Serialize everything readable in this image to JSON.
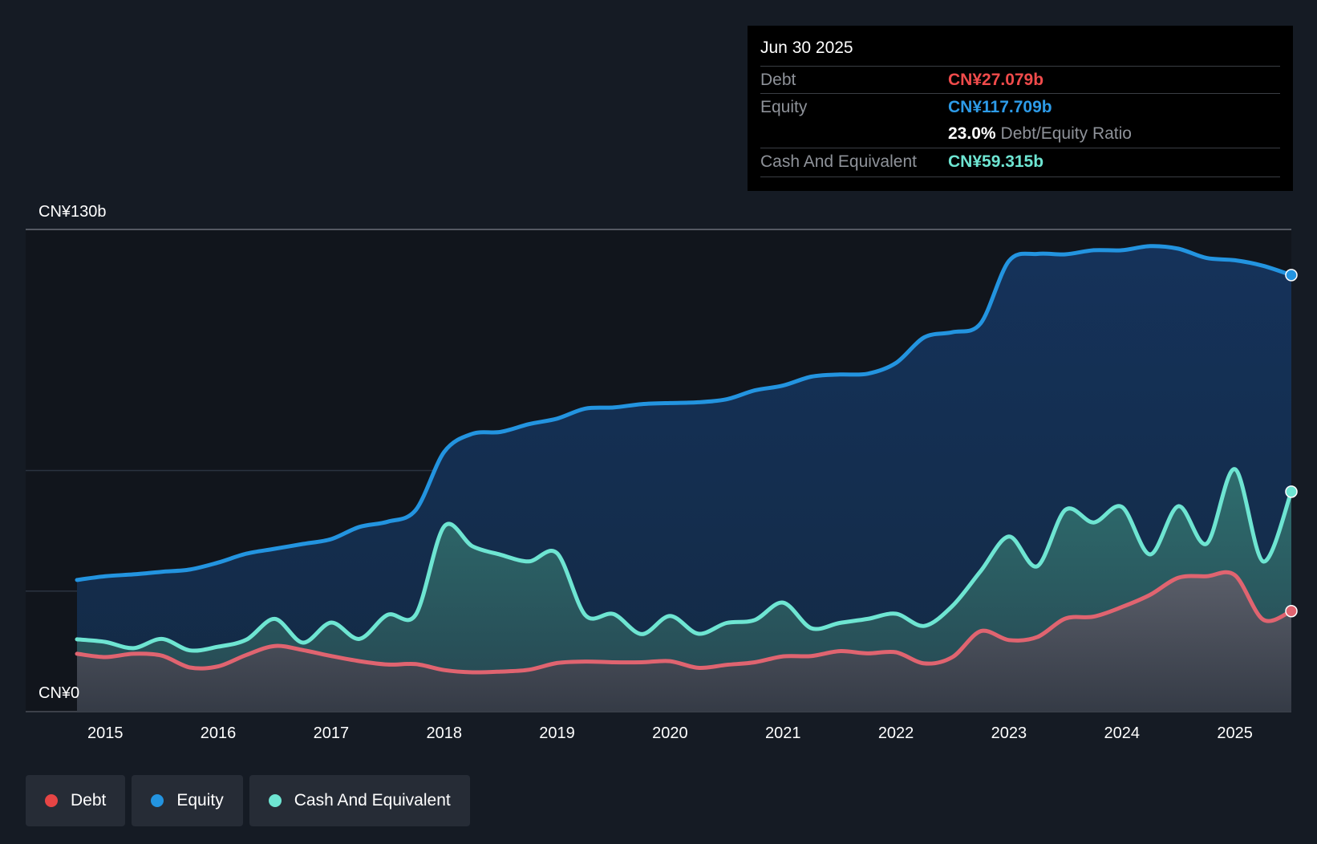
{
  "tooltip": {
    "date": "Jun 30 2025",
    "debt_label": "Debt",
    "debt_value": "CN¥27.079b",
    "equity_label": "Equity",
    "equity_value": "CN¥117.709b",
    "ratio_value": "23.0%",
    "ratio_label": "Debt/Equity Ratio",
    "cash_label": "Cash And Equivalent",
    "cash_value": "CN¥59.315b"
  },
  "legend": [
    {
      "label": "Debt",
      "color": "#e64545"
    },
    {
      "label": "Equity",
      "color": "#2394e0"
    },
    {
      "label": "Cash And Equivalent",
      "color": "#6ee5d2"
    }
  ],
  "colors": {
    "debt": "#e06470",
    "equity": "#2394e0",
    "cash": "#6ee5d2",
    "debt_text": "#f04b4b",
    "equity_text": "#2d9be8",
    "cash_text": "#6ee5d2"
  },
  "chart_data": {
    "type": "area",
    "title": "",
    "xlabel": "",
    "ylabel": "",
    "ylim": [
      0,
      130
    ],
    "y_tick_labels": [
      "CN¥0",
      "CN¥130b"
    ],
    "x_tick_labels": [
      "2015",
      "2016",
      "2017",
      "2018",
      "2019",
      "2020",
      "2021",
      "2022",
      "2023",
      "2024",
      "2025"
    ],
    "xlim": [
      2014.75,
      2025.5
    ],
    "series": [
      {
        "name": "Equity",
        "x": [
          2014.75,
          2015.0,
          2015.25,
          2015.5,
          2015.75,
          2016.0,
          2016.25,
          2016.5,
          2016.75,
          2017.0,
          2017.25,
          2017.5,
          2017.75,
          2018.0,
          2018.25,
          2018.5,
          2018.75,
          2019.0,
          2019.25,
          2019.5,
          2019.75,
          2020.0,
          2020.25,
          2020.5,
          2020.75,
          2021.0,
          2021.25,
          2021.5,
          2021.75,
          2022.0,
          2022.25,
          2022.5,
          2022.75,
          2023.0,
          2023.25,
          2023.5,
          2023.75,
          2024.0,
          2024.25,
          2024.5,
          2024.75,
          2025.0,
          2025.25,
          2025.5
        ],
        "values": [
          35.5,
          36.5,
          37.0,
          37.7,
          38.3,
          40.2,
          42.6,
          43.9,
          45.2,
          46.5,
          49.8,
          51.2,
          54.4,
          70.0,
          74.9,
          75.4,
          77.5,
          79.0,
          81.7,
          82.0,
          82.9,
          83.2,
          83.4,
          84.2,
          86.6,
          87.9,
          90.3,
          90.9,
          91.1,
          94.0,
          100.9,
          102.3,
          104.7,
          121.5,
          123.4,
          123.3,
          124.4,
          124.4,
          125.5,
          124.8,
          122.3,
          121.7,
          120.2,
          117.7
        ]
      },
      {
        "name": "Cash And Equivalent",
        "x": [
          2014.75,
          2015.0,
          2015.25,
          2015.5,
          2015.75,
          2016.0,
          2016.25,
          2016.5,
          2016.75,
          2017.0,
          2017.25,
          2017.5,
          2017.75,
          2018.0,
          2018.25,
          2018.5,
          2018.75,
          2019.0,
          2019.25,
          2019.5,
          2019.75,
          2020.0,
          2020.25,
          2020.5,
          2020.75,
          2021.0,
          2021.25,
          2021.5,
          2021.75,
          2022.0,
          2022.25,
          2022.5,
          2022.75,
          2023.0,
          2023.25,
          2023.5,
          2023.75,
          2024.0,
          2024.25,
          2024.5,
          2024.75,
          2025.0,
          2025.25,
          2025.5
        ],
        "values": [
          19.5,
          18.8,
          17.1,
          19.6,
          16.5,
          17.5,
          19.4,
          25.0,
          18.6,
          24.0,
          19.6,
          26.1,
          26.2,
          49.9,
          44.6,
          42.3,
          40.5,
          42.7,
          26.0,
          26.3,
          20.9,
          25.8,
          21.0,
          23.9,
          24.7,
          29.4,
          22.5,
          23.9,
          25.0,
          26.4,
          23.1,
          28.5,
          37.9,
          47.2,
          39.2,
          54.4,
          51.0,
          55.2,
          42.4,
          55.4,
          45.3,
          65.4,
          40.5,
          59.3
        ]
      },
      {
        "name": "Debt",
        "x": [
          2014.75,
          2015.0,
          2015.25,
          2015.5,
          2015.75,
          2016.0,
          2016.25,
          2016.5,
          2016.75,
          2017.0,
          2017.25,
          2017.5,
          2017.75,
          2018.0,
          2018.25,
          2018.5,
          2018.75,
          2019.0,
          2019.25,
          2019.5,
          2019.75,
          2020.0,
          2020.25,
          2020.5,
          2020.75,
          2021.0,
          2021.25,
          2021.5,
          2021.75,
          2022.0,
          2022.25,
          2022.5,
          2022.75,
          2023.0,
          2023.25,
          2023.5,
          2023.75,
          2024.0,
          2024.25,
          2024.5,
          2024.75,
          2025.0,
          2025.25,
          2025.5
        ],
        "values": [
          15.6,
          14.7,
          15.6,
          15.1,
          11.9,
          12.2,
          15.3,
          17.7,
          16.6,
          15.0,
          13.6,
          12.7,
          12.8,
          11.2,
          10.6,
          10.8,
          11.3,
          13.1,
          13.5,
          13.3,
          13.3,
          13.6,
          11.8,
          12.6,
          13.3,
          14.9,
          15.0,
          16.3,
          15.7,
          16.0,
          13.0,
          14.7,
          21.7,
          19.3,
          20.1,
          25.1,
          25.6,
          28.2,
          31.5,
          36.1,
          36.5,
          36.8,
          24.8,
          27.1
        ]
      }
    ],
    "legend_position": "bottom-left",
    "grid": true
  }
}
